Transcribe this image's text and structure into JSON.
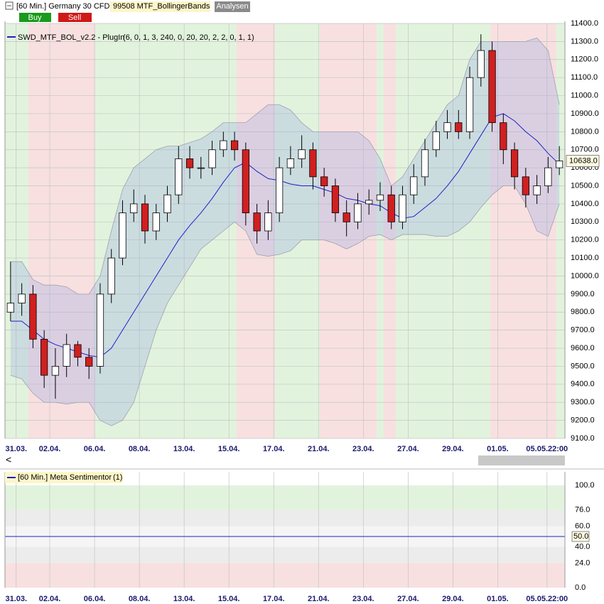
{
  "header": {
    "instrument": "[60 Min.] Germany 30 CFD",
    "study": "99508 MTF_BollingerBands",
    "analysen": "Analysen",
    "buy": "Buy",
    "sell": "Sell"
  },
  "chart_data": [
    {
      "type": "candlestick",
      "title": "SWD_MTF_BOL_v2.2 - PlugIn",
      "params": "(6, 0, 1, 3, 240, 0, 20, 20, 2, 2, 0, 1, 1)",
      "color": "#1f1fc8",
      "open": [
        9800,
        9850,
        9900,
        9650,
        9450,
        9500,
        9620,
        9550,
        9500,
        9900,
        10100,
        10350,
        10400,
        10250,
        10350,
        10450,
        10650,
        10600,
        10600,
        10700,
        10750,
        10700,
        10350,
        10250,
        10350,
        10600,
        10650,
        10700,
        10550,
        10500,
        10350,
        10300,
        10400,
        10420,
        10450,
        10300,
        10450,
        10550,
        10700,
        10800,
        10850,
        10800,
        11100,
        11250,
        10850,
        10700,
        10550,
        10450,
        10500,
        10600
      ],
      "high": [
        10080,
        9960,
        9950,
        9700,
        9600,
        9680,
        9640,
        9600,
        9960,
        10150,
        10420,
        10480,
        10450,
        10400,
        10500,
        10720,
        10720,
        10660,
        10750,
        10800,
        10800,
        10740,
        10400,
        10420,
        10660,
        10720,
        10780,
        10740,
        10600,
        10540,
        10420,
        10460,
        10480,
        10520,
        10500,
        10500,
        10620,
        10760,
        10860,
        10920,
        10920,
        11160,
        11340,
        11300,
        10900,
        10740,
        10600,
        10560,
        10660,
        10720
      ],
      "low": [
        9750,
        9780,
        9600,
        9380,
        9320,
        9440,
        9500,
        9430,
        9460,
        9850,
        10060,
        10300,
        10180,
        10200,
        10300,
        10400,
        10540,
        10540,
        10560,
        10660,
        10640,
        10280,
        10180,
        10200,
        10300,
        10560,
        10600,
        10480,
        10440,
        10300,
        10220,
        10260,
        10340,
        10360,
        10260,
        10260,
        10400,
        10500,
        10660,
        10760,
        10760,
        10760,
        11050,
        10800,
        10620,
        10480,
        10380,
        10400,
        10460,
        10560
      ],
      "close": [
        9850,
        9900,
        9650,
        9450,
        9500,
        9620,
        9550,
        9500,
        9900,
        10100,
        10350,
        10400,
        10250,
        10350,
        10450,
        10650,
        10600,
        10600,
        10700,
        10750,
        10700,
        10350,
        10250,
        10350,
        10600,
        10650,
        10700,
        10550,
        10500,
        10350,
        10300,
        10400,
        10420,
        10450,
        10300,
        10450,
        10550,
        10700,
        10800,
        10850,
        10800,
        11100,
        11250,
        10850,
        10700,
        10550,
        10450,
        10500,
        10600,
        10638
      ],
      "upper": [
        10080,
        10080,
        9980,
        9950,
        9950,
        9940,
        9900,
        9900,
        10000,
        10250,
        10480,
        10600,
        10650,
        10700,
        10720,
        10720,
        10740,
        10760,
        10800,
        10850,
        10850,
        10850,
        10900,
        10950,
        10950,
        10920,
        10850,
        10800,
        10800,
        10800,
        10800,
        10800,
        10750,
        10650,
        10500,
        10550,
        10650,
        10750,
        10850,
        10950,
        11000,
        11200,
        11300,
        11300,
        11300,
        11300,
        11300,
        11320,
        11250,
        10950
      ],
      "middle": [
        9750,
        9750,
        9700,
        9650,
        9620,
        9600,
        9580,
        9560,
        9550,
        9600,
        9700,
        9800,
        9900,
        10000,
        10100,
        10200,
        10280,
        10350,
        10430,
        10520,
        10600,
        10630,
        10580,
        10540,
        10530,
        10510,
        10500,
        10500,
        10480,
        10460,
        10430,
        10420,
        10400,
        10390,
        10350,
        10320,
        10330,
        10380,
        10430,
        10500,
        10580,
        10680,
        10780,
        10880,
        10900,
        10860,
        10800,
        10750,
        10680,
        10620
      ],
      "lower": [
        9450,
        9430,
        9350,
        9300,
        9300,
        9290,
        9300,
        9300,
        9200,
        9170,
        9200,
        9300,
        9500,
        9700,
        9850,
        9950,
        10050,
        10150,
        10200,
        10250,
        10300,
        10250,
        10120,
        10110,
        10120,
        10140,
        10200,
        10200,
        10200,
        10180,
        10150,
        10180,
        10220,
        10230,
        10200,
        10230,
        10230,
        10230,
        10220,
        10220,
        10250,
        10300,
        10380,
        10450,
        10500,
        10500,
        10400,
        10250,
        10220,
        10400
      ],
      "price_marker": {
        "value": 10638.0,
        "label": "10638.0"
      },
      "xlim": [
        0,
        50
      ],
      "xticks": [
        {
          "value": 1,
          "label": "31.03."
        },
        {
          "value": 4,
          "label": "02.04."
        },
        {
          "value": 8,
          "label": "06.04."
        },
        {
          "value": 12,
          "label": "08.04."
        },
        {
          "value": 16,
          "label": "13.04."
        },
        {
          "value": 20,
          "label": "15.04."
        },
        {
          "value": 24,
          "label": "17.04."
        },
        {
          "value": 28,
          "label": "21.04."
        },
        {
          "value": 32,
          "label": "23.04."
        },
        {
          "value": 36,
          "label": "27.04."
        },
        {
          "value": 40,
          "label": "29.04."
        },
        {
          "value": 44,
          "label": "01.05."
        },
        {
          "value": 48.4,
          "label": "05.05.22:00"
        }
      ],
      "ylim": [
        9100,
        11400
      ],
      "yticks": [
        {
          "value": 9100,
          "label": "9100.0"
        },
        {
          "value": 9200,
          "label": "9200.0"
        },
        {
          "value": 9300,
          "label": "9300.0"
        },
        {
          "value": 9400,
          "label": "9400.0"
        },
        {
          "value": 9500,
          "label": "9500.0"
        },
        {
          "value": 9600,
          "label": "9600.0"
        },
        {
          "value": 9700,
          "label": "9700.0"
        },
        {
          "value": 9800,
          "label": "9800.0"
        },
        {
          "value": 9900,
          "label": "9900.0"
        },
        {
          "value": 10000,
          "label": "10000.0"
        },
        {
          "value": 10100,
          "label": "10100.0"
        },
        {
          "value": 10200,
          "label": "10200.0"
        },
        {
          "value": 10300,
          "label": "10300.0"
        },
        {
          "value": 10400,
          "label": "10400.0"
        },
        {
          "value": 10500,
          "label": "10500.0"
        },
        {
          "value": 10600,
          "label": "10600.0"
        },
        {
          "value": 10700,
          "label": "10700.0"
        },
        {
          "value": 10800,
          "label": "10800.0"
        },
        {
          "value": 10900,
          "label": "10900.0"
        },
        {
          "value": 11000,
          "label": "11000.0"
        },
        {
          "value": 11100,
          "label": "11100.0"
        },
        {
          "value": 11200,
          "label": "11200.0"
        },
        {
          "value": 11300,
          "label": "11300.0"
        },
        {
          "value": 11400,
          "label": "11400.0"
        }
      ],
      "grid": true
    },
    {
      "type": "line",
      "title": "[60 Min.] Meta Sentimentor",
      "params": "(1)",
      "color": "#1f1fc8",
      "values": [
        50.0
      ],
      "value_labels": [
        "50.0"
      ],
      "ylim": [
        0,
        100
      ],
      "yticks": [
        {
          "value": 0,
          "label": "0.0"
        },
        {
          "value": 24,
          "label": "24.0"
        },
        {
          "value": 40,
          "label": "40.0"
        },
        {
          "value": 60,
          "label": "60.0"
        },
        {
          "value": 76,
          "label": "76.0"
        },
        {
          "value": 100,
          "label": "100.0"
        }
      ],
      "grid": true
    }
  ]
}
